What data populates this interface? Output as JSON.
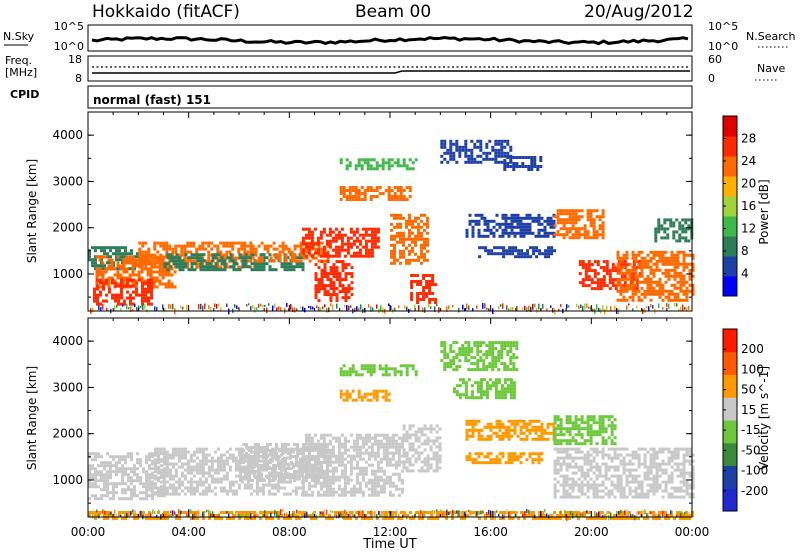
{
  "header": {
    "station": "Hokkaido (fitACF)",
    "beam": "Beam 00",
    "date": "20/Aug/2012"
  },
  "noise_panel": {
    "left_label": "N.Sky",
    "left_ticks": [
      "10^5",
      "10^0"
    ],
    "right_ticks": [
      "10^5",
      "10^0"
    ],
    "right_label": "N.Search"
  },
  "freq_panel": {
    "left_label_1": "Freq.",
    "left_label_2": "[MHz]",
    "left_ticks": [
      "18",
      "8"
    ],
    "right_ticks": [
      "60",
      "0"
    ],
    "right_label": "Nave"
  },
  "cpid_panel": {
    "label": "CPID",
    "mode_text": "normal (fast) 151"
  },
  "x_axis": {
    "title": "Time UT",
    "ticks": [
      "00:00",
      "04:00",
      "08:00",
      "12:00",
      "16:00",
      "20:00",
      "00:00"
    ]
  },
  "chart_data": [
    {
      "type": "heatmap",
      "panel": "power",
      "ylabel": "Slant Range [km]",
      "yticks": [
        1000,
        2000,
        3000,
        4000
      ],
      "ylim": [
        200,
        4500
      ],
      "xlim_hours": [
        0,
        24
      ],
      "colorbar": {
        "label": "Power [dB]",
        "ticks": [
          "28",
          "24",
          "20",
          "16",
          "12",
          "8",
          "4"
        ],
        "colors": [
          "#0000ff",
          "#1e3fa8",
          "#2e7d5a",
          "#3fb84a",
          "#9fd43a",
          "#ffb000",
          "#ff6a00",
          "#ff2a00",
          "#e00000"
        ]
      },
      "regions": [
        {
          "t": [
            0.0,
            2.0
          ],
          "r": [
            1100,
            1600
          ],
          "color": "#2e7d5a"
        },
        {
          "t": [
            0.3,
            3.5
          ],
          "r": [
            700,
            1400
          ],
          "color": "#ff6a00"
        },
        {
          "t": [
            0.2,
            2.5
          ],
          "r": [
            350,
            900
          ],
          "color": "#ff2a00"
        },
        {
          "t": [
            2.0,
            6.5
          ],
          "r": [
            1150,
            1700
          ],
          "color": "#ff6a00"
        },
        {
          "t": [
            3.0,
            8.5
          ],
          "r": [
            1100,
            1450
          ],
          "color": "#2e7d5a"
        },
        {
          "t": [
            6.5,
            9.5
          ],
          "r": [
            1250,
            1700
          ],
          "color": "#ff6a00"
        },
        {
          "t": [
            8.5,
            11.5
          ],
          "r": [
            1400,
            2000
          ],
          "color": "#ff2a00"
        },
        {
          "t": [
            9.0,
            10.5
          ],
          "r": [
            400,
            1300
          ],
          "color": "#ff2a00"
        },
        {
          "t": [
            10.0,
            12.8
          ],
          "r": [
            2600,
            2900
          ],
          "color": "#ff6a00"
        },
        {
          "t": [
            10.0,
            13.0
          ],
          "r": [
            3300,
            3500
          ],
          "color": "#3fb84a"
        },
        {
          "t": [
            12.0,
            13.5
          ],
          "r": [
            1200,
            2300
          ],
          "color": "#ff6a00"
        },
        {
          "t": [
            12.8,
            13.8
          ],
          "r": [
            400,
            1000
          ],
          "color": "#ff2a00"
        },
        {
          "t": [
            14.0,
            16.8
          ],
          "r": [
            3400,
            3900
          ],
          "color": "#1e3fa8"
        },
        {
          "t": [
            15.0,
            18.5
          ],
          "r": [
            1800,
            2300
          ],
          "color": "#1e3fa8"
        },
        {
          "t": [
            16.5,
            18.0
          ],
          "r": [
            3250,
            3550
          ],
          "color": "#1e3fa8"
        },
        {
          "t": [
            15.5,
            18.5
          ],
          "r": [
            1400,
            1600
          ],
          "color": "#1e3fa8"
        },
        {
          "t": [
            18.5,
            20.5
          ],
          "r": [
            1800,
            2400
          ],
          "color": "#ff6a00"
        },
        {
          "t": [
            19.5,
            22.0
          ],
          "r": [
            700,
            1300
          ],
          "color": "#ff2a00"
        },
        {
          "t": [
            21.0,
            24.0
          ],
          "r": [
            400,
            1500
          ],
          "color": "#ff6a00"
        },
        {
          "t": [
            22.5,
            24.0
          ],
          "r": [
            1700,
            2200
          ],
          "color": "#2e7d5a"
        }
      ]
    },
    {
      "type": "heatmap",
      "panel": "velocity",
      "ylabel": "Slant Range [km]",
      "yticks": [
        1000,
        2000,
        3000,
        4000
      ],
      "ylim": [
        200,
        4500
      ],
      "xlim_hours": [
        0,
        24
      ],
      "colorbar": {
        "label": "Velocity [m s^-1]",
        "ticks": [
          "200",
          "100",
          "50",
          "15",
          "-15",
          "-50",
          "-100",
          "-200"
        ],
        "colors": [
          "#1e2ad0",
          "#1e3fa8",
          "#3a8a3a",
          "#6cc83a",
          "#c8c8c8",
          "#ff9900",
          "#ff5a00",
          "#ff1a00"
        ]
      },
      "regions": [
        {
          "t": [
            0.0,
            3.0
          ],
          "r": [
            600,
            1600
          ],
          "color": "#c8c8c8"
        },
        {
          "t": [
            2.5,
            8.5
          ],
          "r": [
            700,
            1700
          ],
          "color": "#c8c8c8"
        },
        {
          "t": [
            6.0,
            9.5
          ],
          "r": [
            1000,
            1800
          ],
          "color": "#c8c8c8"
        },
        {
          "t": [
            8.5,
            12.5
          ],
          "r": [
            700,
            2000
          ],
          "color": "#c8c8c8"
        },
        {
          "t": [
            10.0,
            12.0
          ],
          "r": [
            2700,
            2950
          ],
          "color": "#ff9900"
        },
        {
          "t": [
            10.0,
            13.0
          ],
          "r": [
            3300,
            3500
          ],
          "color": "#6cc83a"
        },
        {
          "t": [
            12.5,
            14.0
          ],
          "r": [
            1200,
            2200
          ],
          "color": "#c8c8c8"
        },
        {
          "t": [
            14.5,
            17.0
          ],
          "r": [
            2800,
            3200
          ],
          "color": "#6cc83a"
        },
        {
          "t": [
            15.0,
            18.0
          ],
          "r": [
            1400,
            1600
          ],
          "color": "#ff9900"
        },
        {
          "t": [
            15.0,
            18.5
          ],
          "r": [
            1850,
            2300
          ],
          "color": "#ff9900"
        },
        {
          "t": [
            14.0,
            17.0
          ],
          "r": [
            3400,
            4000
          ],
          "color": "#6cc83a"
        },
        {
          "t": [
            18.5,
            21.0
          ],
          "r": [
            1800,
            2400
          ],
          "color": "#6cc83a"
        },
        {
          "t": [
            18.5,
            24.0
          ],
          "r": [
            600,
            1700
          ],
          "color": "#c8c8c8"
        },
        {
          "t": [
            0.0,
            24.0
          ],
          "r": [
            200,
            330
          ],
          "color": "#ff9900"
        }
      ]
    }
  ]
}
